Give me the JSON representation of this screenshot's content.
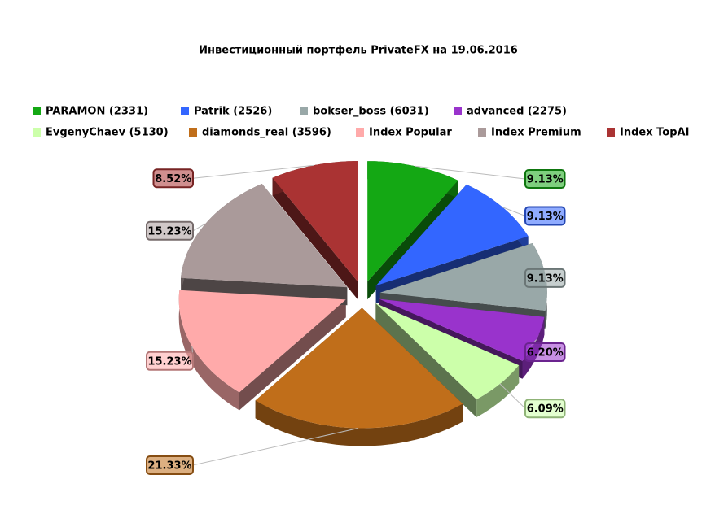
{
  "chart_data": {
    "type": "pie3d",
    "title": "Инвестиционный портфель PrivateFX на 19.06.2016",
    "series": [
      {
        "name": "PARAMON (2331)",
        "color": "#14a814",
        "value": 9.13,
        "value_label": "9.13%"
      },
      {
        "name": "Patrik (2526)",
        "color": "#3366ff",
        "value": 9.13,
        "value_label": "9.13%"
      },
      {
        "name": "bokser_boss (6031)",
        "color": "#99a8a8",
        "value": 9.13,
        "value_label": "9.13%"
      },
      {
        "name": "advanced (2275)",
        "color": "#9933cc",
        "value": 6.2,
        "value_label": "6.20%"
      },
      {
        "name": "EvgenyChaev (5130)",
        "color": "#ccffaa",
        "value": 6.09,
        "value_label": "6.09%"
      },
      {
        "name": "diamonds_real (3596)",
        "color": "#c06e1a",
        "value": 21.33,
        "value_label": "21.33%"
      },
      {
        "name": "Index Popular",
        "color": "#ffaaaa",
        "value": 15.23,
        "value_label": "15.23%"
      },
      {
        "name": "Index Premium",
        "color": "#aa9a9a",
        "value": 15.23,
        "value_label": "15.23%"
      },
      {
        "name": "Index TopAI",
        "color": "#aa3333",
        "value": 8.52,
        "value_label": "8.52%"
      }
    ]
  }
}
